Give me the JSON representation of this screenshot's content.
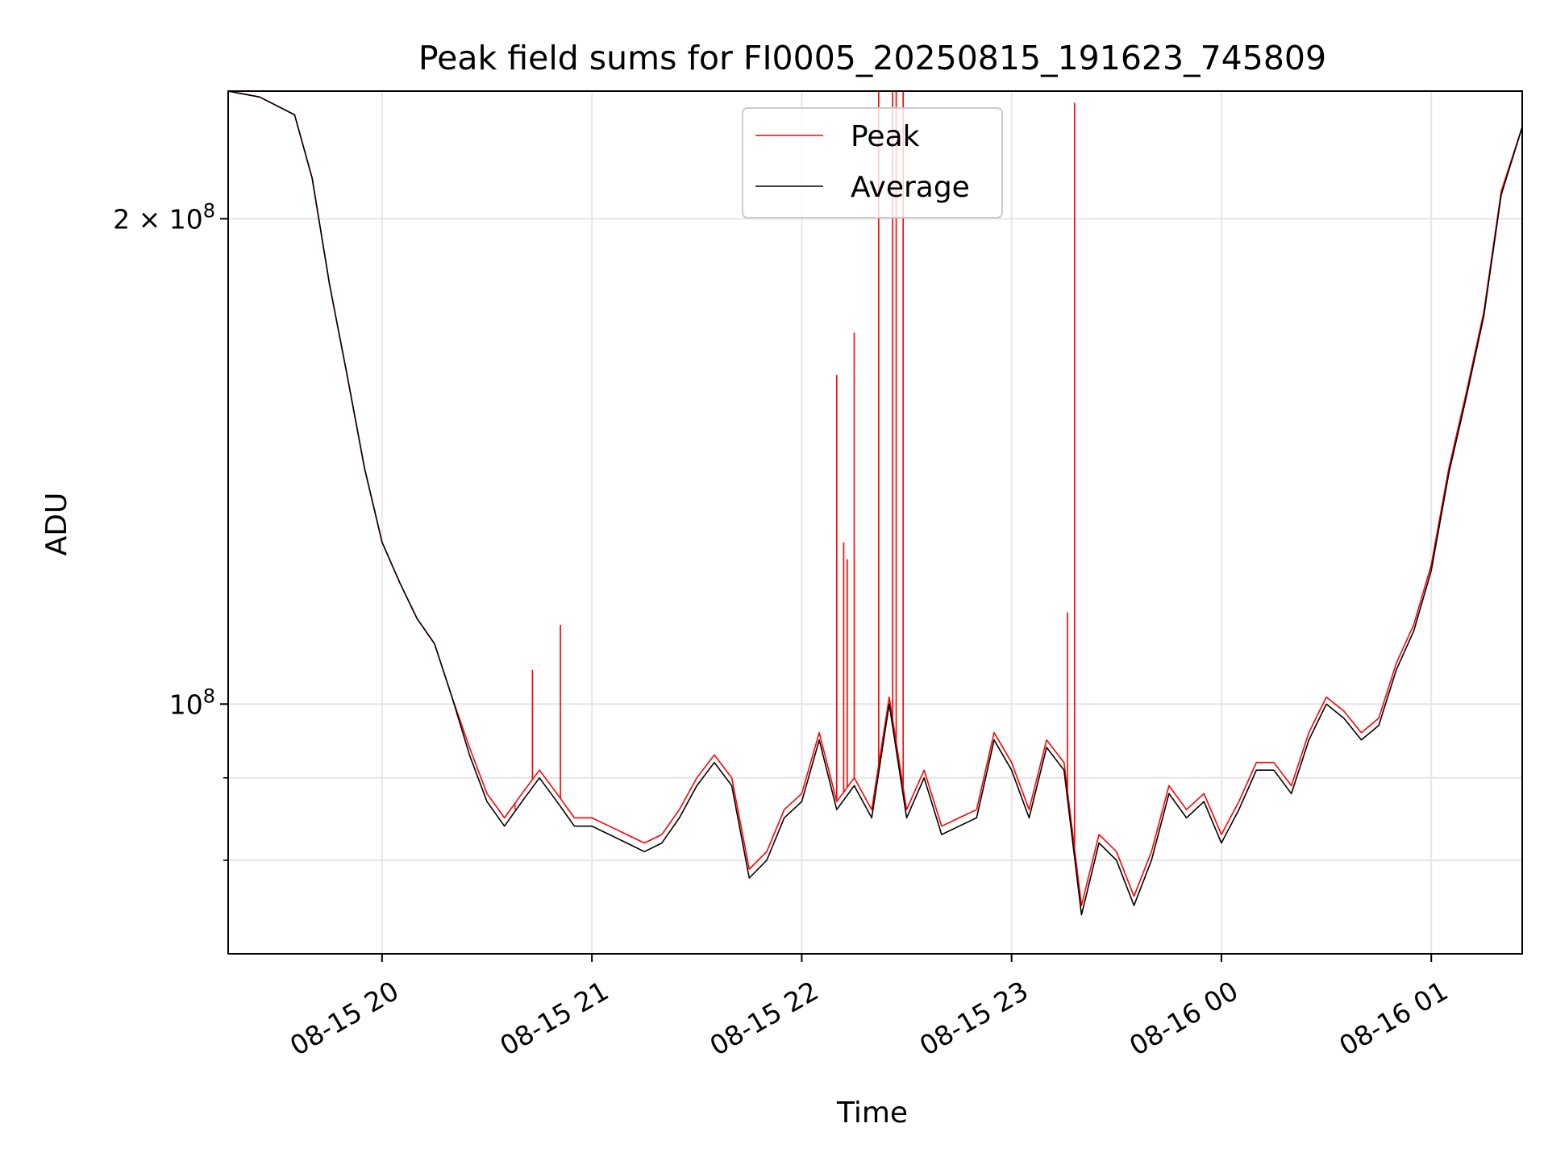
{
  "chart_data": {
    "type": "line",
    "title": "Peak field sums for FI0005_20250815_191623_745809",
    "xlabel": "Time",
    "ylabel": "ADU",
    "y_scale": "log",
    "ylim": [
      70000000,
      240000000
    ],
    "xlim": [
      "08-15 19:16",
      "08-16 01:26"
    ],
    "x_ticks": [
      "08-15 20",
      "08-15 21",
      "08-15 22",
      "08-15 23",
      "08-16 00",
      "08-16 01"
    ],
    "y_ticks_major": [
      "2 × 10^8",
      "10^8"
    ],
    "grid": true,
    "legend_position": "top-center",
    "series": [
      {
        "name": "Peak",
        "color": "#ff0000",
        "x": [
          "08-15 19:16",
          "08-15 19:25",
          "08-15 19:35",
          "08-15 19:40",
          "08-15 19:45",
          "08-15 19:50",
          "08-15 19:55",
          "08-15 20:00",
          "08-15 20:05",
          "08-15 20:10",
          "08-15 20:15",
          "08-15 20:20",
          "08-15 20:25",
          "08-15 20:30",
          "08-15 20:35",
          "08-15 20:40",
          "08-15 20:45",
          "08-15 20:50",
          "08-15 20:55",
          "08-15 21:00",
          "08-15 21:05",
          "08-15 21:10",
          "08-15 21:15",
          "08-15 21:20",
          "08-15 21:25",
          "08-15 21:30",
          "08-15 21:35",
          "08-15 21:40",
          "08-15 21:45",
          "08-15 21:50",
          "08-15 21:55",
          "08-15 22:00",
          "08-15 22:05",
          "08-15 22:10",
          "08-15 22:15",
          "08-15 22:20",
          "08-15 22:25",
          "08-15 22:30",
          "08-15 22:35",
          "08-15 22:40",
          "08-15 22:45",
          "08-15 22:50",
          "08-15 22:55",
          "08-15 23:00",
          "08-15 23:05",
          "08-15 23:10",
          "08-15 23:15",
          "08-15 23:20",
          "08-15 23:25",
          "08-15 23:30",
          "08-15 23:35",
          "08-15 23:40",
          "08-15 23:45",
          "08-15 23:50",
          "08-15 23:55",
          "08-16 00:00",
          "08-16 00:05",
          "08-16 00:10",
          "08-16 00:15",
          "08-16 00:20",
          "08-16 00:25",
          "08-16 00:30",
          "08-16 00:35",
          "08-16 00:40",
          "08-16 00:45",
          "08-16 00:50",
          "08-16 00:55",
          "08-16 01:00",
          "08-16 01:05",
          "08-16 01:10",
          "08-16 01:15",
          "08-16 01:20",
          "08-16 01:26"
        ],
        "values": [
          240000000,
          238000000,
          232000000,
          212000000,
          182000000,
          160000000,
          140000000,
          126000000,
          119000000,
          113000000,
          109000000,
          101000000,
          94000000,
          88000000,
          85000000,
          88000000,
          91000000,
          88000000,
          85000000,
          85000000,
          84000000,
          83000000,
          82000000,
          83000000,
          86000000,
          90000000,
          93000000,
          90000000,
          79000000,
          81000000,
          86000000,
          88000000,
          96000000,
          87000000,
          90000000,
          86000000,
          101000000,
          86000000,
          91000000,
          84000000,
          85000000,
          86000000,
          96000000,
          92000000,
          86000000,
          95000000,
          92000000,
          75000000,
          83000000,
          81000000,
          76000000,
          81000000,
          89000000,
          86000000,
          88000000,
          83000000,
          87000000,
          92000000,
          92000000,
          89000000,
          96000000,
          101000000,
          99000000,
          96000000,
          98000000,
          106000000,
          112000000,
          122000000,
          140000000,
          156000000,
          175000000,
          208000000,
          228000000
        ],
        "spikes": [
          {
            "x": "08-15 20:38",
            "value": 86000000
          },
          {
            "x": "08-15 20:43",
            "value": 105000000
          },
          {
            "x": "08-15 20:51",
            "value": 112000000
          },
          {
            "x": "08-15 22:10",
            "value": 160000000
          },
          {
            "x": "08-15 22:12",
            "value": 126000000
          },
          {
            "x": "08-15 22:13",
            "value": 123000000
          },
          {
            "x": "08-15 22:15",
            "value": 170000000
          },
          {
            "x": "08-15 22:21",
            "value": 89000000
          },
          {
            "x": "08-15 22:22",
            "value": 240000000
          },
          {
            "x": "08-15 22:26",
            "value": 240000000
          },
          {
            "x": "08-15 22:27",
            "value": 240000000
          },
          {
            "x": "08-15 22:29",
            "value": 240000000
          },
          {
            "x": "08-15 23:16",
            "value": 114000000
          },
          {
            "x": "08-15 23:18",
            "value": 236000000
          }
        ]
      },
      {
        "name": "Average",
        "color": "#000000",
        "x": [
          "08-15 19:16",
          "08-15 19:25",
          "08-15 19:35",
          "08-15 19:40",
          "08-15 19:45",
          "08-15 19:50",
          "08-15 19:55",
          "08-15 20:00",
          "08-15 20:05",
          "08-15 20:10",
          "08-15 20:15",
          "08-15 20:20",
          "08-15 20:25",
          "08-15 20:30",
          "08-15 20:35",
          "08-15 20:40",
          "08-15 20:45",
          "08-15 20:50",
          "08-15 20:55",
          "08-15 21:00",
          "08-15 21:05",
          "08-15 21:10",
          "08-15 21:15",
          "08-15 21:20",
          "08-15 21:25",
          "08-15 21:30",
          "08-15 21:35",
          "08-15 21:40",
          "08-15 21:45",
          "08-15 21:50",
          "08-15 21:55",
          "08-15 22:00",
          "08-15 22:05",
          "08-15 22:10",
          "08-15 22:15",
          "08-15 22:20",
          "08-15 22:25",
          "08-15 22:30",
          "08-15 22:35",
          "08-15 22:40",
          "08-15 22:45",
          "08-15 22:50",
          "08-15 22:55",
          "08-15 23:00",
          "08-15 23:05",
          "08-15 23:10",
          "08-15 23:15",
          "08-15 23:20",
          "08-15 23:25",
          "08-15 23:30",
          "08-15 23:35",
          "08-15 23:40",
          "08-15 23:45",
          "08-15 23:50",
          "08-15 23:55",
          "08-16 00:00",
          "08-16 00:05",
          "08-16 00:10",
          "08-16 00:15",
          "08-16 00:20",
          "08-16 00:25",
          "08-16 00:30",
          "08-16 00:35",
          "08-16 00:40",
          "08-16 00:45",
          "08-16 00:50",
          "08-16 00:55",
          "08-16 01:00",
          "08-16 01:05",
          "08-16 01:10",
          "08-16 01:15",
          "08-16 01:20",
          "08-16 01:26"
        ],
        "values": [
          240000000,
          238000000,
          232000000,
          212000000,
          182000000,
          160000000,
          140000000,
          126000000,
          119000000,
          113000000,
          109000000,
          101000000,
          93000000,
          87000000,
          84000000,
          87000000,
          90000000,
          87000000,
          84000000,
          84000000,
          83000000,
          82000000,
          81000000,
          82000000,
          85000000,
          89000000,
          92000000,
          89000000,
          78000000,
          80000000,
          85000000,
          87000000,
          95000000,
          86000000,
          89000000,
          85000000,
          100000000,
          85000000,
          90000000,
          83000000,
          84000000,
          85000000,
          95000000,
          91000000,
          85000000,
          94000000,
          91000000,
          74000000,
          82000000,
          80000000,
          75000000,
          80000000,
          88000000,
          85000000,
          87000000,
          82000000,
          86000000,
          91000000,
          91000000,
          88000000,
          95000000,
          100000000,
          98000000,
          95000000,
          97000000,
          105000000,
          111000000,
          121000000,
          139000000,
          155000000,
          174000000,
          207000000,
          228000000
        ]
      }
    ]
  }
}
